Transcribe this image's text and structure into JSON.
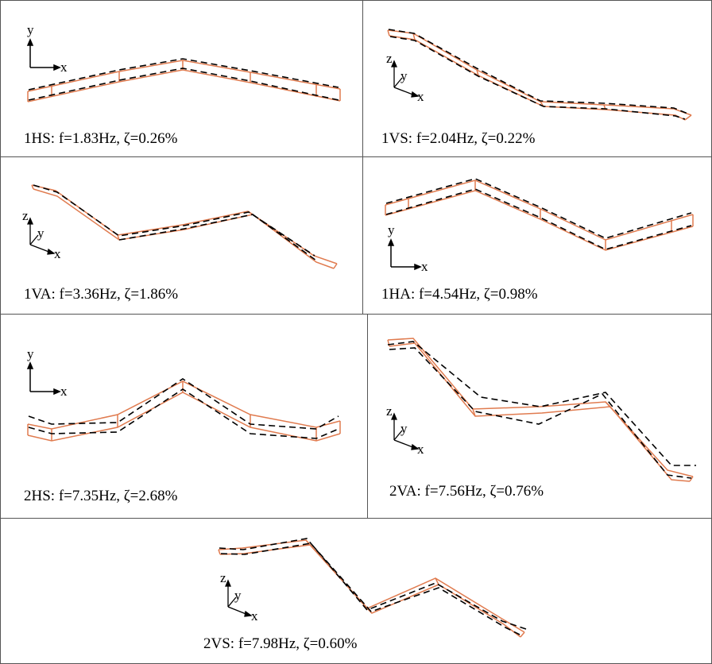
{
  "figure": {
    "border_color": "#555555",
    "measured_color": "#000000",
    "model_color": "#e07b4f",
    "panels": [
      {
        "id": "1HS",
        "caption": "1HS: f=1.83Hz, ζ=0.26%",
        "view": "plan",
        "axes": [
          "y",
          "x"
        ]
      },
      {
        "id": "1VS",
        "caption": "1VS: f=2.04Hz, ζ=0.22%",
        "view": "iso",
        "axes": [
          "z",
          "y",
          "x"
        ]
      },
      {
        "id": "1VA",
        "caption": "1VA: f=3.36Hz, ζ=1.86%",
        "view": "iso",
        "axes": [
          "z",
          "y",
          "x"
        ]
      },
      {
        "id": "1HA",
        "caption": "1HA: f=4.54Hz, ζ=0.98%",
        "view": "plan",
        "axes": [
          "y",
          "x"
        ]
      },
      {
        "id": "2HS",
        "caption": "2HS: f=7.35Hz, ζ=2.68%",
        "view": "plan",
        "axes": [
          "y",
          "x"
        ]
      },
      {
        "id": "2VA",
        "caption": "2VA: f=7.56Hz, ζ=0.76%",
        "view": "iso",
        "axes": [
          "z",
          "y",
          "x"
        ]
      },
      {
        "id": "2VS",
        "caption": "2VS: f=7.98Hz, ζ=0.60%",
        "view": "iso",
        "axes": [
          "z",
          "y",
          "x"
        ]
      }
    ]
  }
}
